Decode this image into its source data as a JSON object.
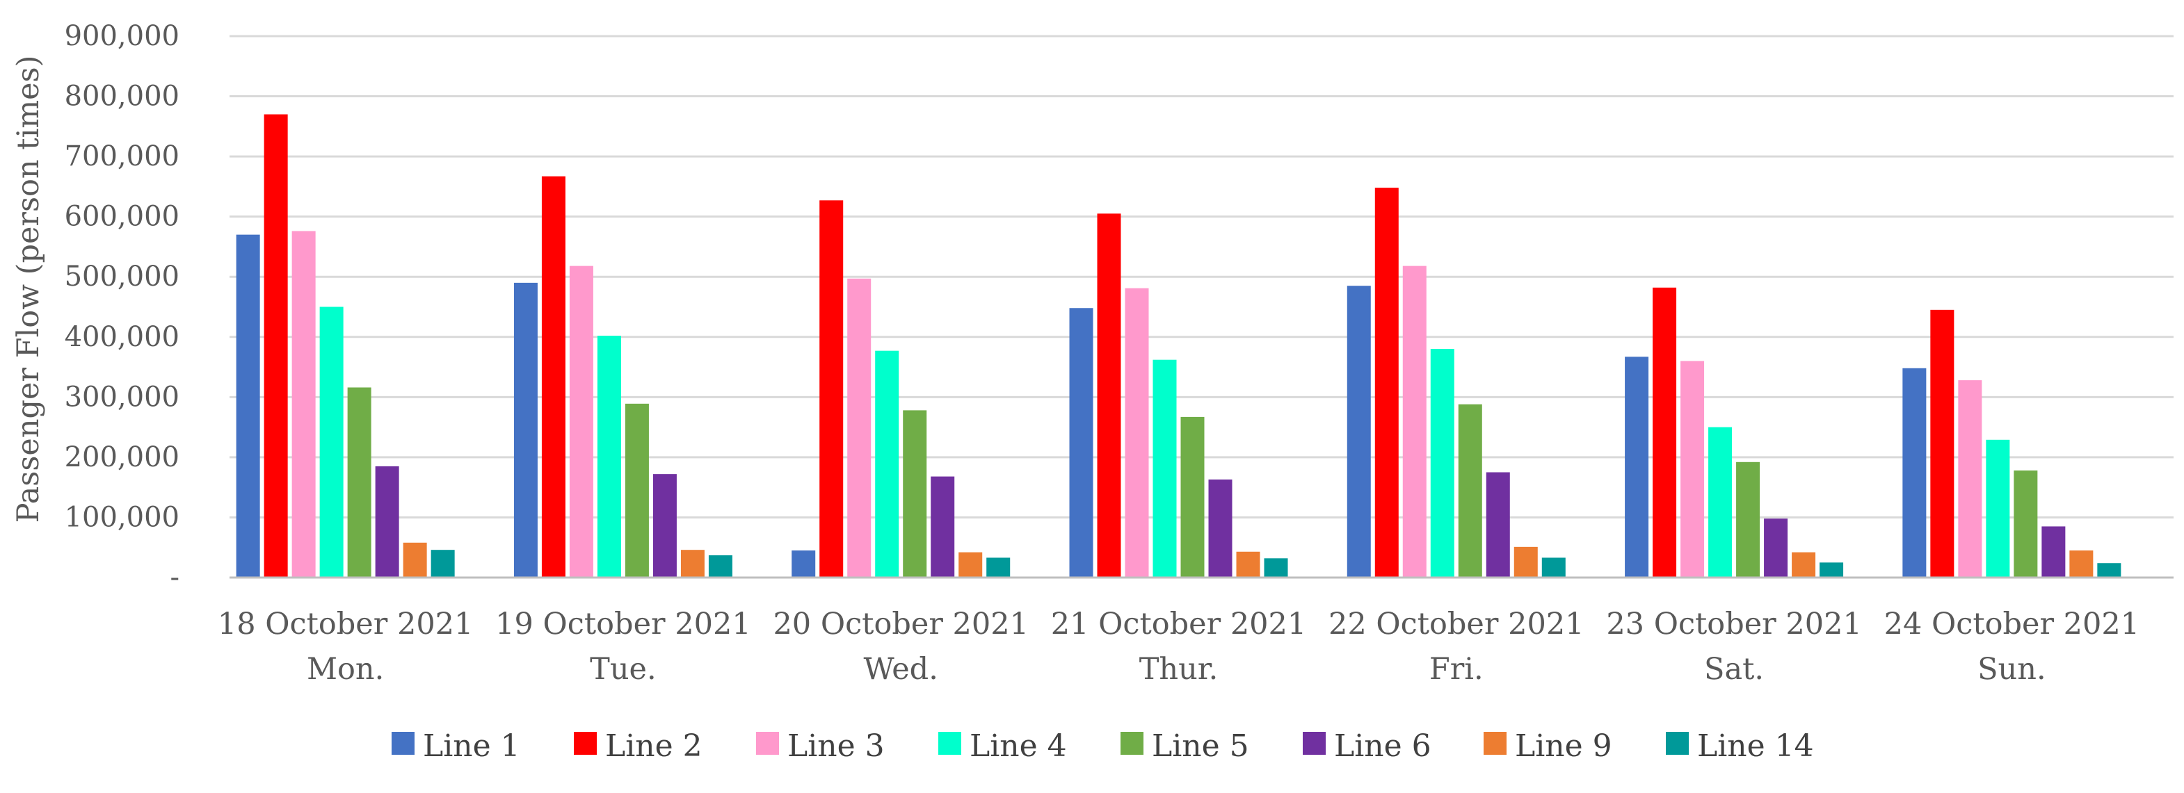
{
  "chart_data": {
    "type": "bar",
    "ylabel": "Passenger Flow (person times)",
    "xlabel": "",
    "ylim": [
      0,
      900000
    ],
    "yticks": [
      0,
      100000,
      200000,
      300000,
      400000,
      500000,
      600000,
      700000,
      800000,
      900000
    ],
    "ytick_labels": [
      "-",
      "100,000",
      "200,000",
      "300,000",
      "400,000",
      "500,000",
      "600,000",
      "700,000",
      "800,000",
      "900,000"
    ],
    "grid": true,
    "legend_position": "bottom",
    "categories": [
      {
        "date": "18 October 2021",
        "day": "Mon."
      },
      {
        "date": "19 October 2021",
        "day": "Tue."
      },
      {
        "date": "20 October 2021",
        "day": "Wed."
      },
      {
        "date": "21 October 2021",
        "day": "Thur."
      },
      {
        "date": "22 October 2021",
        "day": "Fri."
      },
      {
        "date": "23 October 2021",
        "day": "Sat."
      },
      {
        "date": "24 October 2021",
        "day": "Sun."
      }
    ],
    "series": [
      {
        "name": "Line 1",
        "color": "#4472c4",
        "values": [
          570000,
          490000,
          45000,
          448000,
          485000,
          367000,
          348000
        ]
      },
      {
        "name": "Line 2",
        "color": "#ff0000",
        "values": [
          770000,
          667000,
          627000,
          605000,
          648000,
          482000,
          445000
        ]
      },
      {
        "name": "Line 3",
        "color": "#ff99cc",
        "values": [
          576000,
          518000,
          497000,
          481000,
          518000,
          360000,
          328000
        ]
      },
      {
        "name": "Line 4",
        "color": "#00ffcc",
        "values": [
          450000,
          402000,
          377000,
          362000,
          380000,
          250000,
          229000
        ]
      },
      {
        "name": "Line 5",
        "color": "#70ad47",
        "values": [
          316000,
          289000,
          278000,
          267000,
          288000,
          192000,
          178000
        ]
      },
      {
        "name": "Line 6",
        "color": "#7030a0",
        "values": [
          185000,
          172000,
          168000,
          163000,
          175000,
          98000,
          85000
        ]
      },
      {
        "name": "Line 9",
        "color": "#ed7d31",
        "values": [
          58000,
          46000,
          42000,
          43000,
          51000,
          42000,
          45000
        ]
      },
      {
        "name": "Line 14",
        "color": "#009999",
        "values": [
          46000,
          37000,
          33000,
          32000,
          33000,
          25000,
          24000
        ]
      }
    ]
  }
}
